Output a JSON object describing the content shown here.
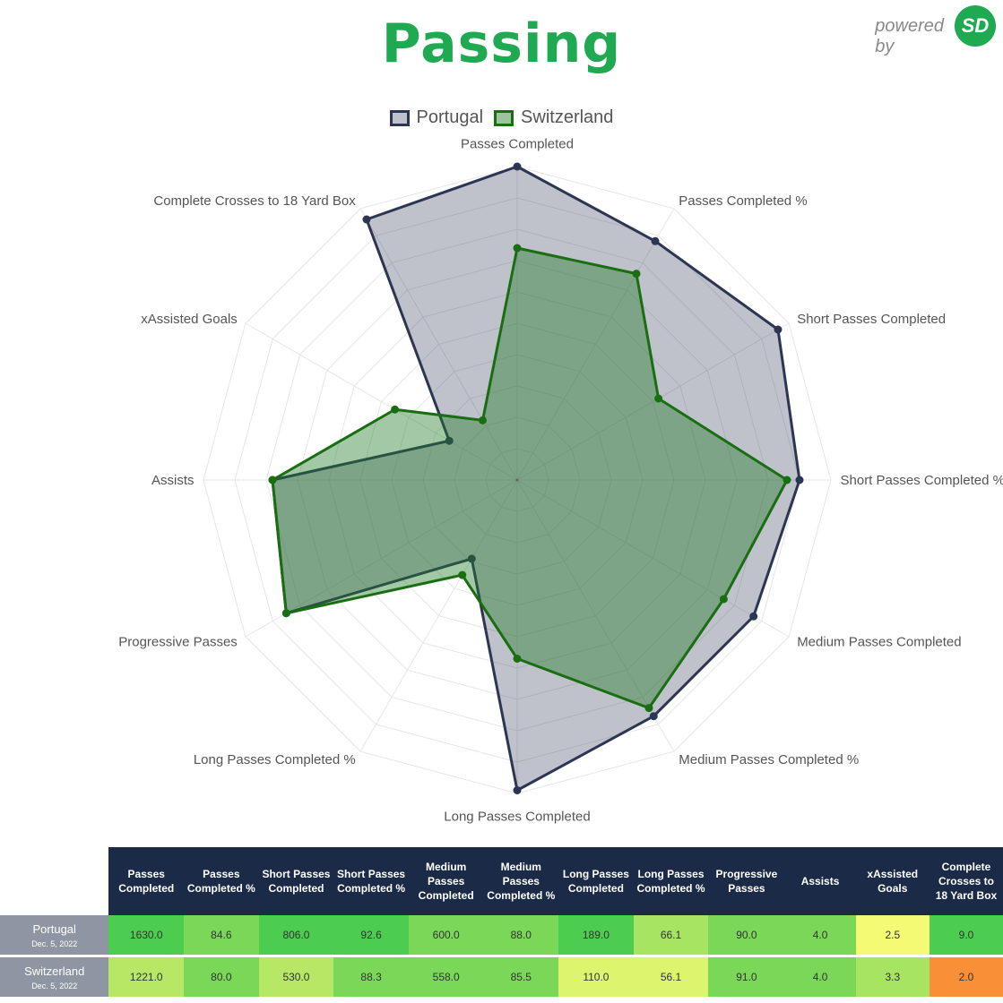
{
  "title": "Passing",
  "branding": {
    "powered_by": "powered by",
    "logo_text": "SD",
    "accent": "#1faa52"
  },
  "legend": [
    {
      "label": "Portugal",
      "color": "#2c3553"
    },
    {
      "label": "Switzerland",
      "color": "#1a6e12"
    }
  ],
  "chart_data": {
    "type": "radar",
    "title": "Passing",
    "axes": [
      "Passes Completed",
      "Passes Completed %",
      "Short Passes Completed",
      "Short Passes Completed %",
      "Medium Passes Completed",
      "Medium Passes Completed %",
      "Long Passes Completed",
      "Long Passes Completed %",
      "Progressive Passes",
      "Assists",
      "xAssisted Goals",
      "Complete Crosses to 18 Yard Box"
    ],
    "range": [
      0,
      1
    ],
    "series": [
      {
        "name": "Portugal",
        "color": "#2c3553",
        "fill": "rgba(44,53,83,0.3)",
        "values": [
          1.0,
          0.88,
          0.96,
          0.9,
          0.87,
          0.87,
          0.99,
          0.29,
          0.85,
          0.78,
          0.25,
          0.96
        ]
      },
      {
        "name": "Switzerland",
        "color": "#1a6e12",
        "fill": "rgba(36,125,40,0.42)",
        "values": [
          0.74,
          0.76,
          0.52,
          0.86,
          0.76,
          0.84,
          0.57,
          0.35,
          0.85,
          0.78,
          0.45,
          0.22
        ]
      }
    ]
  },
  "table": {
    "columns": [
      "Passes Completed",
      "Passes Completed %",
      "Short Passes Completed",
      "Short Passes Completed %",
      "Medium Passes Completed",
      "Medium Passes Completed %",
      "Long Passes Completed",
      "Long Passes Completed %",
      "Progressive Passes",
      "Assists",
      "xAssisted Goals",
      "Complete Crosses to 18 Yard Box"
    ],
    "rows": [
      {
        "team": "Portugal",
        "date": "Dec. 5, 2022",
        "values": [
          "1630.0",
          "84.6",
          "806.0",
          "92.6",
          "600.0",
          "88.0",
          "189.0",
          "66.1",
          "90.0",
          "4.0",
          "2.5",
          "9.0"
        ],
        "colors": [
          "#4ccd50",
          "#7bd757",
          "#4ccd50",
          "#4ccd50",
          "#7bd757",
          "#7bd757",
          "#4ccd50",
          "#a6e461",
          "#7bd757",
          "#7bd757",
          "#f4fa74",
          "#4ccd50"
        ]
      },
      {
        "team": "Switzerland",
        "date": "Dec. 5, 2022",
        "values": [
          "1221.0",
          "80.0",
          "530.0",
          "88.3",
          "558.0",
          "85.5",
          "110.0",
          "56.1",
          "91.0",
          "4.0",
          "3.3",
          "2.0"
        ],
        "colors": [
          "#b6e865",
          "#7bd757",
          "#b6e865",
          "#7bd757",
          "#7bd757",
          "#7bd757",
          "#dcf46e",
          "#dcf46e",
          "#7bd757",
          "#7bd757",
          "#a6e461",
          "#f98f37"
        ]
      }
    ]
  }
}
